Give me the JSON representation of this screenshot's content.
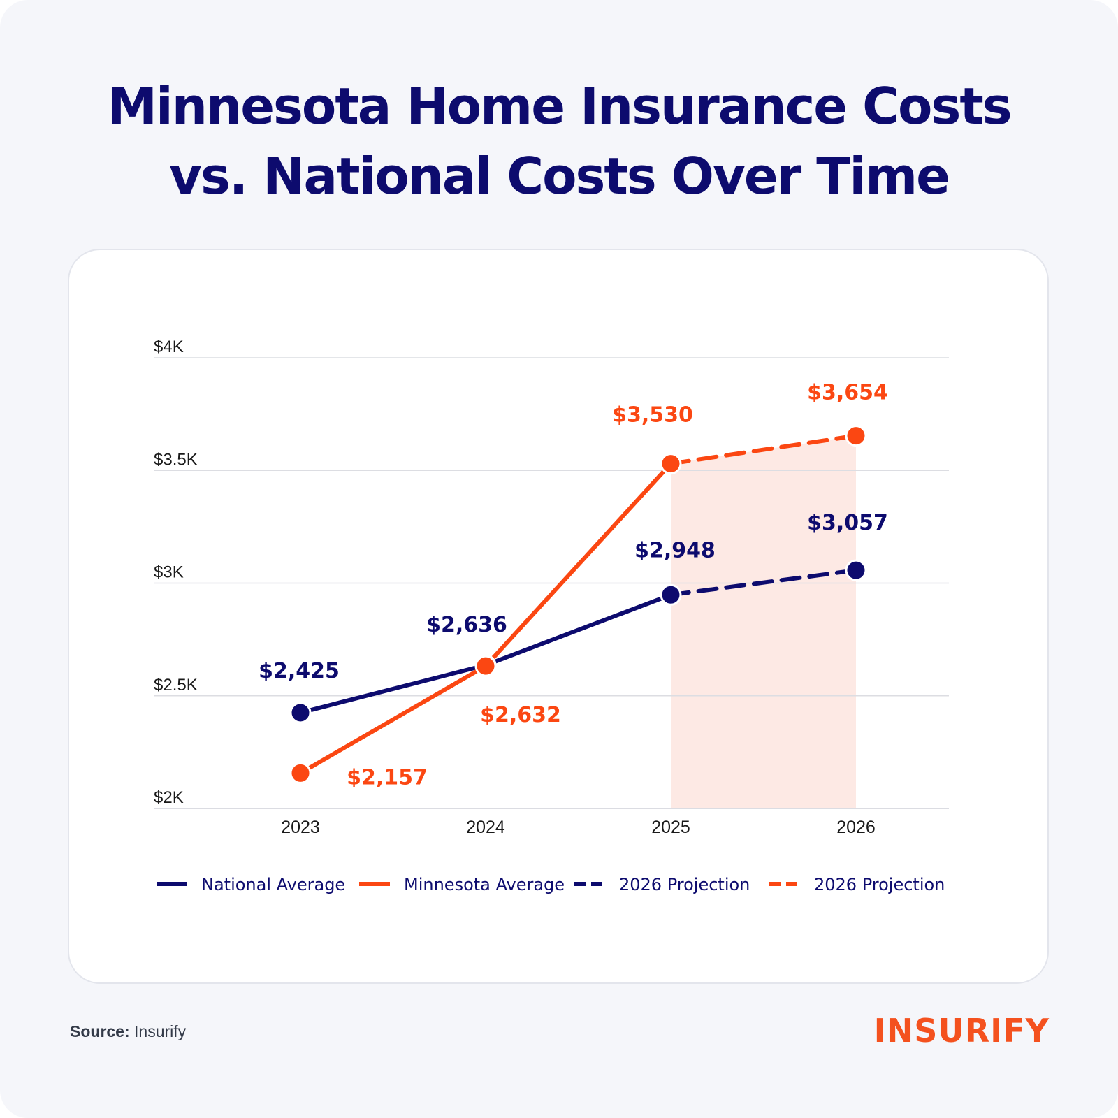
{
  "title_line1": "Minnesota Home Insurance Costs",
  "title_line2": "vs. National Costs Over Time",
  "source_label": "Source:",
  "source_value": "Insurify",
  "logo_text": "INSURIFY",
  "colors": {
    "national": "#0d0b6e",
    "minnesota": "#fb4712",
    "projection_band": "#fde9e4",
    "grid": "#dcdde2",
    "background": "#f5f6fa"
  },
  "chart_data": {
    "type": "line",
    "title": "Minnesota Home Insurance Costs vs. National Costs Over Time",
    "categories": [
      "2023",
      "2024",
      "2025",
      "2026"
    ],
    "ylim": [
      2000,
      4000
    ],
    "yticks": [
      {
        "value": 2000,
        "label": "$2K"
      },
      {
        "value": 2500,
        "label": "$2.5K"
      },
      {
        "value": 3000,
        "label": "$3K"
      },
      {
        "value": 3500,
        "label": "$3.5K"
      },
      {
        "value": 4000,
        "label": "$4K"
      }
    ],
    "grid": true,
    "projection_shaded_range": [
      "2025",
      "2026"
    ],
    "series": [
      {
        "name": "National Average",
        "color": "#0d0b6e",
        "values": [
          2425,
          2636,
          2948,
          3057
        ],
        "labels": [
          "$2,425",
          "$2,636",
          "$2,948",
          "$3,057"
        ],
        "projected_from_index": 2
      },
      {
        "name": "Minnesota Average",
        "color": "#fb4712",
        "values": [
          2157,
          2632,
          3530,
          3654
        ],
        "labels": [
          "$2,157",
          "$2,632",
          "$3,530",
          "$3,654"
        ],
        "projected_from_index": 2
      }
    ],
    "legend": [
      {
        "label": "National Average",
        "color": "#0d0b6e",
        "style": "solid"
      },
      {
        "label": "Minnesota Average",
        "color": "#fb4712",
        "style": "solid"
      },
      {
        "label": "2026 Projection",
        "color": "#0d0b6e",
        "style": "dashed"
      },
      {
        "label": "2026 Projection",
        "color": "#fb4712",
        "style": "dashed"
      }
    ],
    "legend_position": "bottom"
  }
}
